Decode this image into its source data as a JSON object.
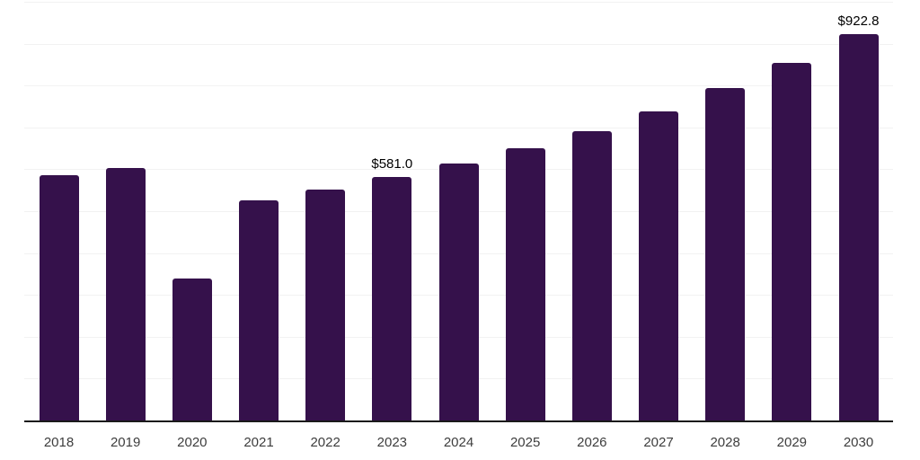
{
  "chart": {
    "background_color": "#ffffff",
    "bar_color": "#35114b",
    "axis_color": "#1a1a1a",
    "gridline_color": "#f2f2f2",
    "tick_label_color": "#3d3d3d",
    "value_label_color": "#000000"
  },
  "chart_data": {
    "type": "bar",
    "title": "",
    "xlabel": "",
    "ylabel": "",
    "categories": [
      "2018",
      "2019",
      "2020",
      "2021",
      "2022",
      "2023",
      "2024",
      "2025",
      "2026",
      "2027",
      "2028",
      "2029",
      "2030"
    ],
    "values": [
      585,
      603,
      339,
      525,
      551,
      581.0,
      613,
      651,
      692,
      739,
      794,
      855,
      922.8
    ],
    "data_labels": [
      null,
      null,
      null,
      null,
      null,
      "$581.0",
      null,
      null,
      null,
      null,
      null,
      null,
      "$922.8"
    ],
    "ylim": [
      0,
      1000
    ],
    "gridline_step": 100,
    "grid": true,
    "legend": false,
    "currency_prefix": "$"
  }
}
